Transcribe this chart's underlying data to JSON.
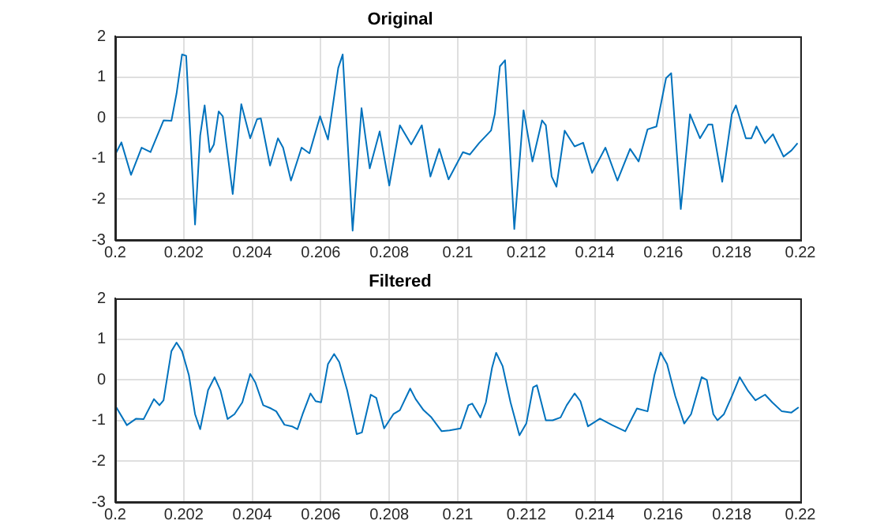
{
  "chart_data": [
    {
      "type": "line",
      "title": "Original",
      "xlim": [
        0.2,
        0.22
      ],
      "xticks": [
        0.2,
        0.202,
        0.204,
        0.206,
        0.208,
        0.21,
        0.212,
        0.214,
        0.216,
        0.218,
        0.22
      ],
      "ylim": [
        -3,
        2
      ],
      "yticks": [
        -3,
        -2,
        -1,
        0,
        1,
        2
      ],
      "grid": true,
      "series": [
        {
          "color": "#0072bd",
          "x": [
            0.2,
            0.20018,
            0.20046,
            0.20077,
            0.20103,
            0.20141,
            0.20164,
            0.20179,
            0.20195,
            0.20207,
            0.20233,
            0.20248,
            0.20261,
            0.20276,
            0.20288,
            0.20302,
            0.20314,
            0.20343,
            0.20368,
            0.20394,
            0.20414,
            0.20425,
            0.20452,
            0.20475,
            0.2049,
            0.20513,
            0.20544,
            0.20567,
            0.20598,
            0.20621,
            0.20651,
            0.20664,
            0.20693,
            0.20719,
            0.20743,
            0.20772,
            0.208,
            0.20831,
            0.20864,
            0.20895,
            0.2092,
            0.20946,
            0.20973,
            0.21015,
            0.21035,
            0.21062,
            0.21097,
            0.21108,
            0.21123,
            0.21138,
            0.21165,
            0.21192,
            0.21218,
            0.21246,
            0.21257,
            0.21274,
            0.21288,
            0.21312,
            0.21341,
            0.21366,
            0.21392,
            0.21431,
            0.21466,
            0.21503,
            0.21528,
            0.21554,
            0.2158,
            0.21608,
            0.21623,
            0.21651,
            0.21678,
            0.21707,
            0.21731,
            0.21743,
            0.21772,
            0.218,
            0.21812,
            0.21841,
            0.21857,
            0.21872,
            0.21897,
            0.2192,
            0.21951,
            0.21974,
            0.21992
          ],
          "values": [
            -0.9,
            -0.6,
            -1.4,
            -0.73,
            -0.84,
            -0.06,
            -0.07,
            0.6,
            1.56,
            1.53,
            -2.62,
            -0.43,
            0.31,
            -0.84,
            -0.65,
            0.16,
            0.04,
            -1.87,
            0.34,
            -0.5,
            -0.03,
            -0.01,
            -1.17,
            -0.5,
            -0.73,
            -1.54,
            -0.73,
            -0.87,
            0.04,
            -0.53,
            1.23,
            1.56,
            -2.77,
            0.24,
            -1.24,
            -0.33,
            -1.66,
            -0.18,
            -0.65,
            -0.18,
            -1.44,
            -0.76,
            -1.51,
            -0.84,
            -0.9,
            -0.62,
            -0.31,
            0.09,
            1.27,
            1.42,
            -2.73,
            0.19,
            -1.07,
            -0.06,
            -0.18,
            -1.44,
            -1.69,
            -0.31,
            -0.7,
            -0.61,
            -1.35,
            -0.73,
            -1.54,
            -0.76,
            -1.07,
            -0.28,
            -0.21,
            0.98,
            1.1,
            -2.24,
            0.09,
            -0.5,
            -0.16,
            -0.16,
            -1.57,
            0.09,
            0.31,
            -0.5,
            -0.5,
            -0.21,
            -0.62,
            -0.4,
            -0.95,
            -0.8,
            -0.62
          ]
        }
      ]
    },
    {
      "type": "line",
      "title": "Filtered",
      "xlim": [
        0.2,
        0.22
      ],
      "xticks": [
        0.2,
        0.202,
        0.204,
        0.206,
        0.208,
        0.21,
        0.212,
        0.214,
        0.216,
        0.218,
        0.22
      ],
      "ylim": [
        -3,
        2
      ],
      "yticks": [
        -3,
        -2,
        -1,
        0,
        1,
        2
      ],
      "grid": true,
      "series": [
        {
          "color": "#0072bd",
          "x": [
            0.20003,
            0.20034,
            0.20061,
            0.20083,
            0.20113,
            0.20129,
            0.20141,
            0.20164,
            0.20179,
            0.20195,
            0.20215,
            0.20233,
            0.20248,
            0.20271,
            0.2029,
            0.20307,
            0.20328,
            0.20348,
            0.20371,
            0.20394,
            0.20409,
            0.20432,
            0.20455,
            0.2047,
            0.20494,
            0.20516,
            0.20532,
            0.20547,
            0.2057,
            0.20585,
            0.20601,
            0.20621,
            0.20639,
            0.20654,
            0.20677,
            0.20705,
            0.2072,
            0.20746,
            0.20762,
            0.20785,
            0.20812,
            0.20831,
            0.20861,
            0.20877,
            0.209,
            0.20923,
            0.20953,
            0.20976,
            0.21008,
            0.21031,
            0.21042,
            0.21066,
            0.21082,
            0.211,
            0.21112,
            0.21131,
            0.21154,
            0.2118,
            0.212,
            0.2122,
            0.21231,
            0.21257,
            0.21277,
            0.213,
            0.21318,
            0.21341,
            0.21358,
            0.2138,
            0.21415,
            0.21451,
            0.21489,
            0.21523,
            0.21554,
            0.21574,
            0.21592,
            0.21611,
            0.21635,
            0.21661,
            0.21681,
            0.21712,
            0.21727,
            0.21746,
            0.21758,
            0.21777,
            0.218,
            0.21823,
            0.21846,
            0.21869,
            0.21897,
            0.21918,
            0.21946,
            0.21974,
            0.21995
          ],
          "values": [
            -0.67,
            -1.11,
            -0.95,
            -0.96,
            -0.47,
            -0.62,
            -0.5,
            0.71,
            0.92,
            0.71,
            0.12,
            -0.84,
            -1.21,
            -0.25,
            0.07,
            -0.25,
            -0.96,
            -0.84,
            -0.55,
            0.15,
            -0.06,
            -0.62,
            -0.7,
            -0.77,
            -1.1,
            -1.14,
            -1.21,
            -0.84,
            -0.33,
            -0.52,
            -0.55,
            0.39,
            0.64,
            0.44,
            -0.25,
            -1.33,
            -1.29,
            -0.36,
            -0.44,
            -1.19,
            -0.84,
            -0.74,
            -0.21,
            -0.47,
            -0.74,
            -0.92,
            -1.26,
            -1.24,
            -1.19,
            -0.62,
            -0.58,
            -0.92,
            -0.55,
            0.3,
            0.67,
            0.34,
            -0.55,
            -1.36,
            -1.07,
            -0.18,
            -0.13,
            -0.99,
            -0.99,
            -0.92,
            -0.62,
            -0.33,
            -0.52,
            -1.14,
            -0.95,
            -1.11,
            -1.26,
            -0.7,
            -0.77,
            0.12,
            0.68,
            0.39,
            -0.4,
            -1.07,
            -0.84,
            0.07,
            0,
            -0.84,
            -0.99,
            -0.84,
            -0.4,
            0.07,
            -0.25,
            -0.5,
            -0.36,
            -0.55,
            -0.77,
            -0.8,
            -0.67
          ]
        }
      ]
    }
  ]
}
